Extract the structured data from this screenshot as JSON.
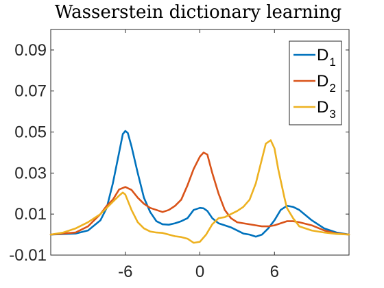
{
  "chart_data": {
    "type": "line",
    "title": "Wasserstein dictionary learning",
    "xlabel": "",
    "ylabel": "",
    "xlim": [
      -12,
      12
    ],
    "ylim": [
      -0.01,
      0.1
    ],
    "x_ticks": [
      -6,
      0,
      6
    ],
    "x_tick_labels": [
      "-6",
      "0",
      "6"
    ],
    "y_ticks": [
      -0.01,
      0.01,
      0.03,
      0.05,
      0.07,
      0.09
    ],
    "y_tick_labels": [
      "-0.01",
      "0.01",
      "0.03",
      "0.05",
      "0.07",
      "0.09"
    ],
    "grid": false,
    "legend_position": "top-right",
    "series": [
      {
        "name": "D",
        "subscript": "1",
        "color": "#0072BD",
        "x": [
          -12,
          -10,
          -9,
          -8,
          -7.5,
          -7,
          -6.5,
          -6.2,
          -6,
          -5.8,
          -5.5,
          -5,
          -4.5,
          -4,
          -3.5,
          -3,
          -2.5,
          -2,
          -1.5,
          -1,
          -0.5,
          0,
          0.3,
          0.6,
          1,
          1.5,
          2,
          2.5,
          3,
          3.5,
          4,
          4.5,
          5,
          5.5,
          6,
          6.5,
          7,
          7.5,
          8,
          9,
          10,
          11,
          12
        ],
        "y": [
          0,
          0.0005,
          0.002,
          0.007,
          0.013,
          0.025,
          0.04,
          0.049,
          0.0505,
          0.0495,
          0.043,
          0.03,
          0.018,
          0.011,
          0.0065,
          0.005,
          0.0048,
          0.0055,
          0.0065,
          0.008,
          0.012,
          0.013,
          0.0128,
          0.0115,
          0.008,
          0.0055,
          0.0045,
          0.0035,
          0.002,
          0.0005,
          0.0,
          -0.001,
          0.0,
          0.003,
          0.007,
          0.012,
          0.014,
          0.0135,
          0.012,
          0.007,
          0.003,
          0.001,
          0
        ]
      },
      {
        "name": "D",
        "subscript": "2",
        "color": "#D95319",
        "x": [
          -12,
          -10,
          -9,
          -8,
          -7.5,
          -7,
          -6.5,
          -6,
          -5.5,
          -5,
          -4.5,
          -4,
          -3.5,
          -3,
          -2.5,
          -2,
          -1.5,
          -1,
          -0.5,
          0,
          0.3,
          0.6,
          1,
          1.5,
          2,
          2.5,
          3,
          3.5,
          4,
          4.5,
          5,
          5.5,
          6,
          6.5,
          7,
          7.5,
          8,
          9,
          10,
          11,
          12
        ],
        "y": [
          0,
          0.001,
          0.004,
          0.01,
          0.014,
          0.017,
          0.022,
          0.0232,
          0.0218,
          0.018,
          0.015,
          0.013,
          0.012,
          0.011,
          0.012,
          0.014,
          0.017,
          0.024,
          0.032,
          0.038,
          0.04,
          0.039,
          0.03,
          0.02,
          0.012,
          0.008,
          0.006,
          0.0055,
          0.005,
          0.0045,
          0.004,
          0.004,
          0.0045,
          0.0055,
          0.0065,
          0.0065,
          0.006,
          0.0045,
          0.002,
          0.0005,
          0
        ]
      },
      {
        "name": "D",
        "subscript": "3",
        "color": "#EDB120",
        "x": [
          -12,
          -11,
          -10,
          -9,
          -8,
          -7.5,
          -7,
          -6.5,
          -6.2,
          -6,
          -5.5,
          -5,
          -4.5,
          -4,
          -3.5,
          -3,
          -2.5,
          -2,
          -1.5,
          -1,
          -0.5,
          0,
          0.5,
          1,
          1.5,
          2,
          2.5,
          3,
          3.5,
          4,
          4.5,
          5,
          5.3,
          5.7,
          6,
          6.3,
          6.8,
          7,
          7.5,
          8,
          9,
          10,
          11,
          12
        ],
        "y": [
          0,
          0.001,
          0.003,
          0.006,
          0.01,
          0.013,
          0.016,
          0.019,
          0.0205,
          0.0195,
          0.012,
          0.006,
          0.003,
          0.0015,
          0.001,
          0.0008,
          0.0,
          -0.0008,
          -0.0012,
          -0.002,
          -0.004,
          -0.0035,
          0.0,
          0.005,
          0.008,
          0.0085,
          0.01,
          0.0115,
          0.0135,
          0.017,
          0.025,
          0.037,
          0.0443,
          0.046,
          0.042,
          0.032,
          0.018,
          0.013,
          0.008,
          0.004,
          0.002,
          0.001,
          0.0003,
          0
        ]
      }
    ]
  }
}
